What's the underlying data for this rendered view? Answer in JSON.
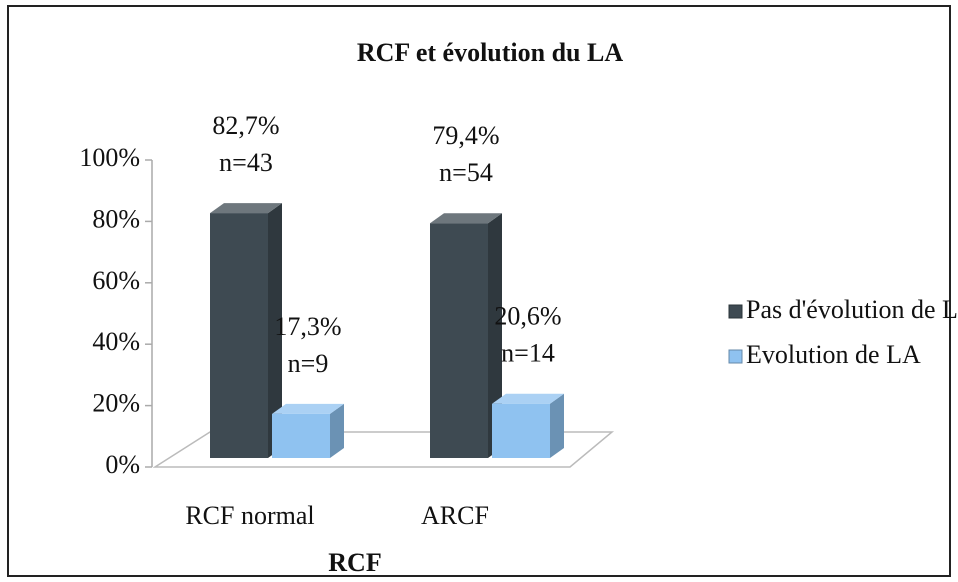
{
  "chart_data": {
    "type": "bar3d",
    "title": "RCF et évolution du LA",
    "x_label": "RCF",
    "categories": [
      "RCF normal",
      "ARCF"
    ],
    "series": [
      {
        "name": "Pas d'évolution de LA",
        "color": "#3e4a52",
        "values": [
          82.7,
          79.4
        ],
        "value_labels": [
          "82,7%",
          "79,4%"
        ],
        "counts": [
          43,
          54
        ],
        "count_labels": [
          "n=43",
          "n=54"
        ]
      },
      {
        "name": "Evolution de LA",
        "color": "#8fc2f0",
        "values": [
          17.3,
          20.6
        ],
        "value_labels": [
          "17,3%",
          "20,6%"
        ],
        "counts": [
          9,
          14
        ],
        "count_labels": [
          "n=9",
          "n=14"
        ]
      }
    ],
    "ylim": [
      0,
      100
    ],
    "yticks": [
      {
        "value": 0,
        "label": "0%"
      },
      {
        "value": 20,
        "label": "20%"
      },
      {
        "value": 40,
        "label": "40%"
      },
      {
        "value": 60,
        "label": "60%"
      },
      {
        "value": 80,
        "label": "80%"
      },
      {
        "value": 100,
        "label": "100%"
      }
    ],
    "legend": "right"
  }
}
